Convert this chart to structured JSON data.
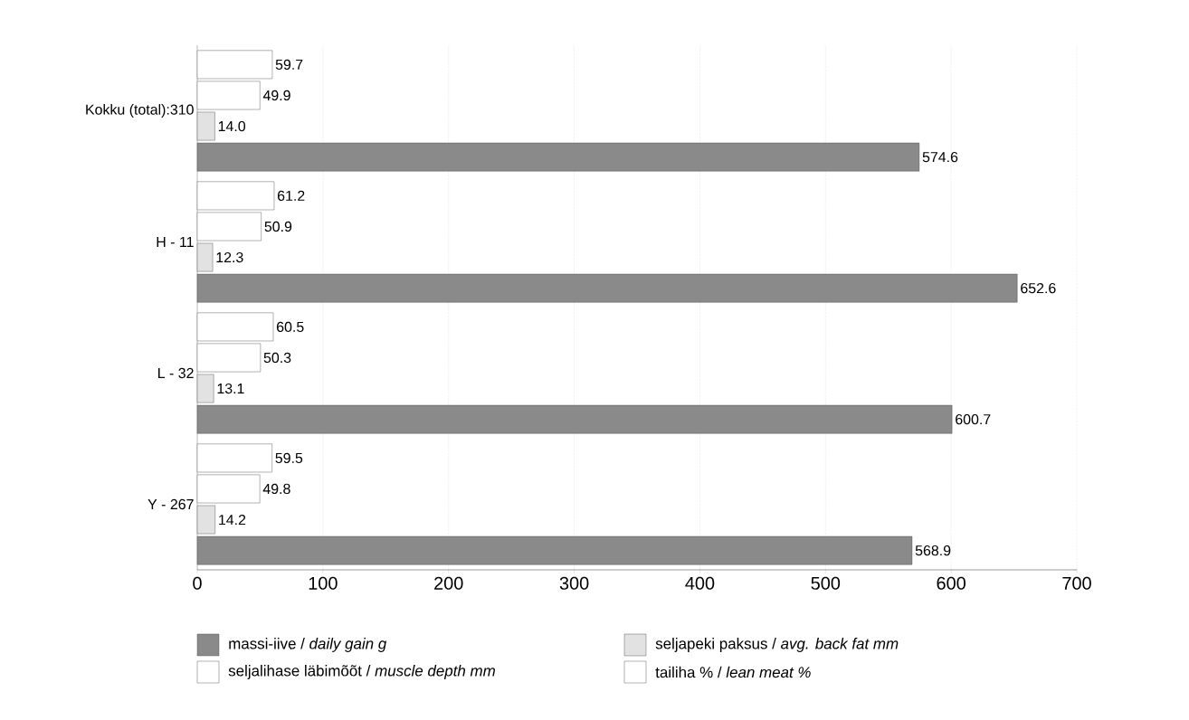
{
  "chart_data": {
    "type": "bar",
    "orientation": "horizontal",
    "categories": [
      "Kokku (total):310",
      "H - 11",
      "L - 32",
      "Y - 267"
    ],
    "series": [
      {
        "name": "massi-iive / *daily gain g*",
        "color": "#8a8a8a",
        "values": [
          574.6,
          652.6,
          600.7,
          568.9
        ],
        "value_labels": [
          "574.6",
          "652.6",
          "600.7",
          "568.9"
        ]
      },
      {
        "name": "seljapeki paksus / *avg. back fat mm*",
        "color": "#e2e2e2",
        "values": [
          14.0,
          12.3,
          13.1,
          14.2
        ],
        "value_labels": [
          "14.0",
          "12.3",
          "13.1",
          "14.2"
        ]
      },
      {
        "name": "seljalihase läbimõõt / *muscle depth mm*",
        "color": "#ffffff",
        "values": [
          49.9,
          50.9,
          50.3,
          49.8
        ],
        "value_labels": [
          "49.9",
          "50.9",
          "50.3",
          "49.8"
        ]
      },
      {
        "name": "tailiha % / *lean meat %*",
        "color": "#ffffff",
        "values": [
          59.7,
          61.2,
          60.5,
          59.5
        ],
        "value_labels": [
          "59.7",
          "61.2",
          "60.5",
          "59.5"
        ]
      }
    ],
    "xlim": [
      0,
      700
    ],
    "xticks": [
      0,
      100,
      200,
      300,
      400,
      500,
      600,
      700
    ],
    "grid": "x",
    "legend": "bottom"
  }
}
